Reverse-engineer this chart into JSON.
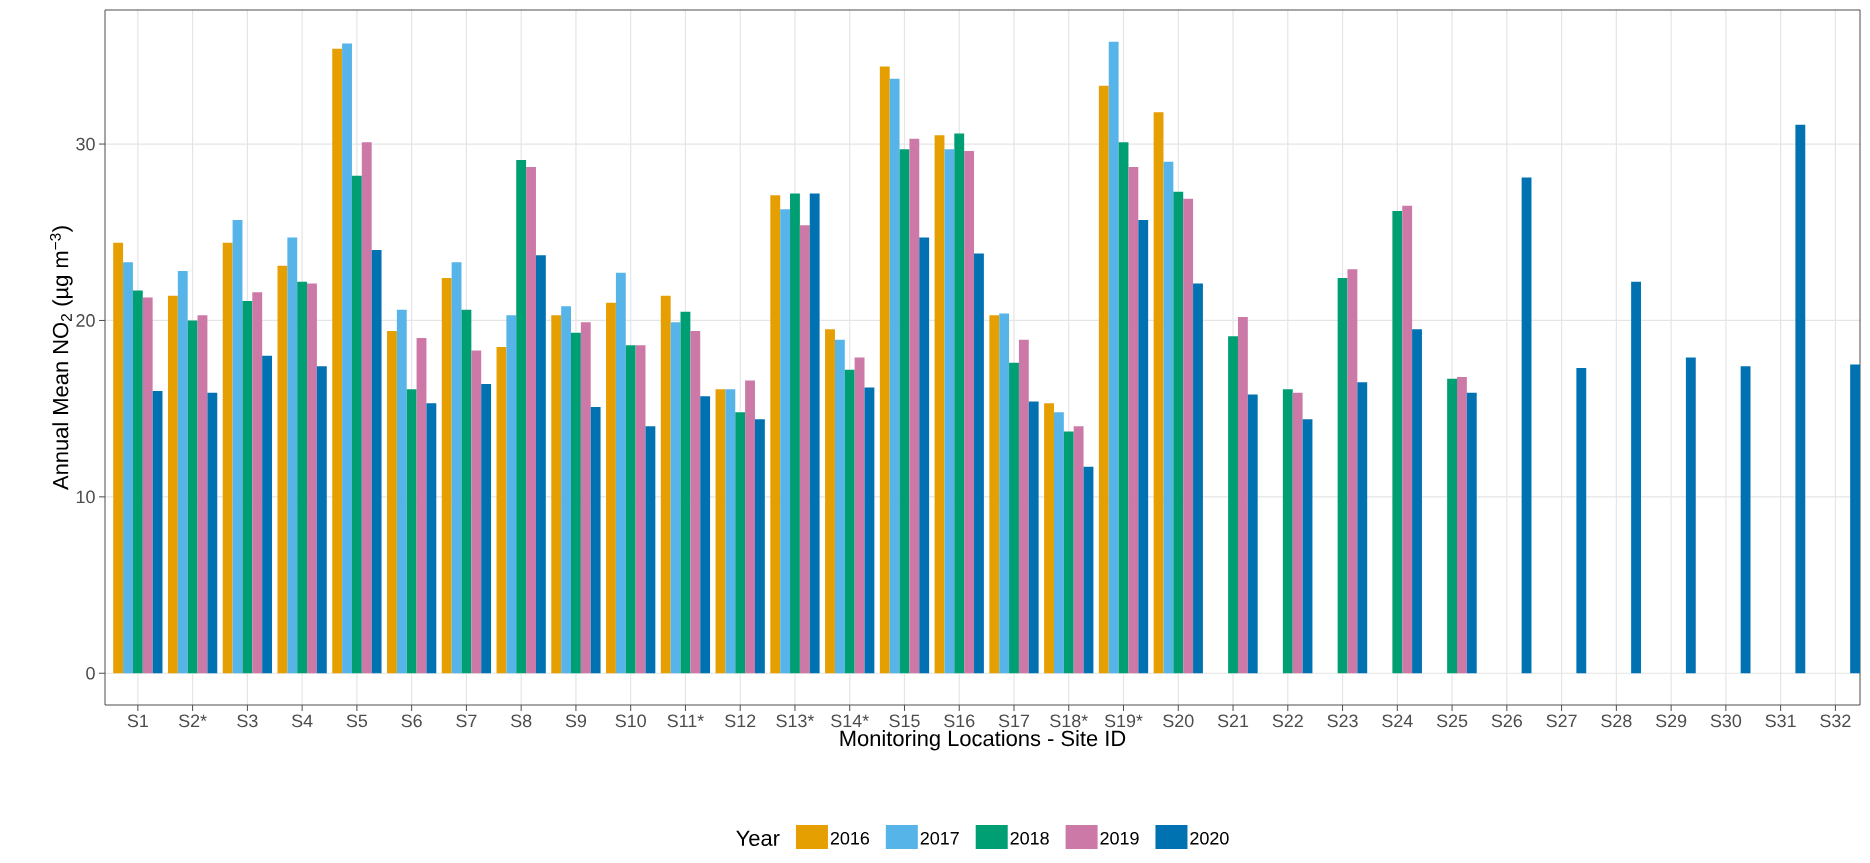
{
  "chart_data": {
    "type": "bar",
    "xlabel": "Monitoring Locations - Site ID",
    "ylabel": "Annual Mean NO$_{2}$ (µg m$^{−3}$)",
    "legend_title": "Year",
    "categories": [
      "S1",
      "S2*",
      "S3",
      "S4",
      "S5",
      "S6",
      "S7",
      "S8",
      "S9",
      "S10",
      "S11*",
      "S12",
      "S13*",
      "S14*",
      "S15",
      "S16",
      "S17",
      "S18*",
      "S19*",
      "S20",
      "S21",
      "S22",
      "S23",
      "S24",
      "S25",
      "S26",
      "S27",
      "S28",
      "S29",
      "S30",
      "S31",
      "S32"
    ],
    "series": [
      {
        "name": "2016",
        "color": "#e69f00",
        "values": [
          24.4,
          21.4,
          24.4,
          23.1,
          35.4,
          19.4,
          22.4,
          18.5,
          20.3,
          21.0,
          21.4,
          16.1,
          27.1,
          19.5,
          34.4,
          30.5,
          20.3,
          15.3,
          33.3,
          31.8,
          null,
          null,
          null,
          null,
          null,
          null,
          null,
          null,
          null,
          null,
          null,
          null
        ]
      },
      {
        "name": "2017",
        "color": "#56b4e9",
        "values": [
          23.3,
          22.8,
          25.7,
          24.7,
          35.7,
          20.6,
          23.3,
          20.3,
          20.8,
          22.7,
          19.9,
          16.1,
          26.3,
          18.9,
          33.7,
          29.7,
          20.4,
          14.8,
          35.8,
          29.0,
          null,
          null,
          null,
          null,
          null,
          null,
          null,
          null,
          null,
          null,
          null,
          null
        ]
      },
      {
        "name": "2018",
        "color": "#009e73",
        "values": [
          21.7,
          20.0,
          21.1,
          22.2,
          28.2,
          16.1,
          20.6,
          29.1,
          19.3,
          18.6,
          20.5,
          14.8,
          27.2,
          17.2,
          29.7,
          30.6,
          17.6,
          13.7,
          30.1,
          27.3,
          19.1,
          16.1,
          22.4,
          26.2,
          16.7,
          null,
          null,
          null,
          null,
          null,
          null,
          null
        ]
      },
      {
        "name": "2019",
        "color": "#cc79a7",
        "values": [
          21.3,
          20.3,
          21.6,
          22.1,
          30.1,
          19.0,
          18.3,
          28.7,
          19.9,
          18.6,
          19.4,
          16.6,
          25.4,
          17.9,
          30.3,
          29.6,
          18.9,
          14.0,
          28.7,
          26.9,
          20.2,
          15.9,
          22.9,
          26.5,
          16.8,
          null,
          null,
          null,
          null,
          null,
          null,
          null
        ]
      },
      {
        "name": "2020",
        "color": "#0072b2",
        "values": [
          16.0,
          15.9,
          18.0,
          17.4,
          24.0,
          15.3,
          16.4,
          23.7,
          15.1,
          14.0,
          15.7,
          14.4,
          27.2,
          16.2,
          24.7,
          23.8,
          15.4,
          11.7,
          25.7,
          22.1,
          15.8,
          14.4,
          16.5,
          19.5,
          15.9,
          28.1,
          17.3,
          22.2,
          17.9,
          17.4,
          31.1,
          17.5
        ]
      }
    ],
    "ylim": [
      -1.8,
      37.6
    ],
    "yticks": [
      0,
      10,
      20,
      30
    ],
    "grid": true,
    "legend": "bottom"
  }
}
